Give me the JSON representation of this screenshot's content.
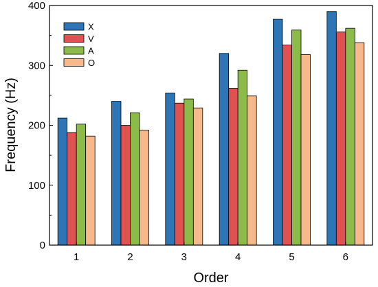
{
  "chart_data": {
    "type": "bar",
    "categories": [
      "1",
      "2",
      "3",
      "4",
      "5",
      "6"
    ],
    "series": [
      {
        "name": "X",
        "color": "#2e75b6",
        "values": [
          212,
          240,
          254,
          320,
          377,
          390
        ]
      },
      {
        "name": "V",
        "color": "#e05151",
        "values": [
          188,
          200,
          237,
          262,
          334,
          356
        ]
      },
      {
        "name": "A",
        "color": "#8cbb4a",
        "values": [
          202,
          221,
          244,
          292,
          359,
          362
        ]
      },
      {
        "name": "O",
        "color": "#f7b98b",
        "values": [
          182,
          192,
          229,
          249,
          318,
          338
        ]
      }
    ],
    "xlabel": "Order",
    "ylabel": "Frequency (Hz)",
    "ylim": [
      0,
      400
    ],
    "yticks": [
      0,
      100,
      200,
      300,
      400
    ],
    "grid": false,
    "legend_position": "top-left"
  }
}
